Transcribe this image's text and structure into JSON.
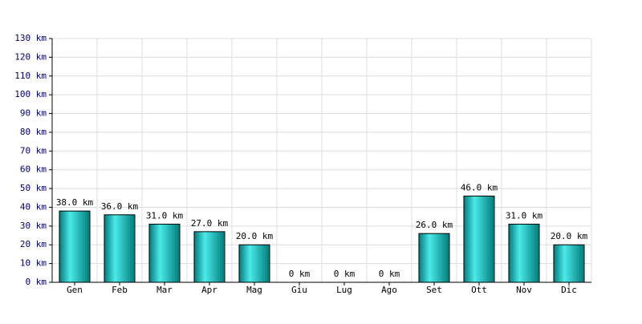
{
  "chart_data": {
    "type": "bar",
    "categories": [
      "Gen",
      "Feb",
      "Mar",
      "Apr",
      "Mag",
      "Giu",
      "Lug",
      "Ago",
      "Set",
      "Ott",
      "Nov",
      "Dic"
    ],
    "values": [
      38,
      36,
      31,
      27,
      20,
      0,
      0,
      0,
      26,
      46,
      31,
      20
    ],
    "value_labels": [
      "38.0 km",
      "36.0 km",
      "31.0 km",
      "27.0 km",
      "20.0 km",
      "0 km",
      "0 km",
      "0 km",
      "26.0 km",
      "46.0 km",
      "31.0 km",
      "20.0 km"
    ],
    "color": "#00e0e0",
    "ylim": [
      0,
      130
    ],
    "yticks": [
      {
        "value": 0,
        "label": "0 km"
      },
      {
        "value": 10,
        "label": "10 km"
      },
      {
        "value": 20,
        "label": "20 km"
      },
      {
        "value": 30,
        "label": "30 km"
      },
      {
        "value": 40,
        "label": "40 km"
      },
      {
        "value": 50,
        "label": "50 km"
      },
      {
        "value": 60,
        "label": "60 km"
      },
      {
        "value": 70,
        "label": "70 km"
      },
      {
        "value": 80,
        "label": "80 km"
      },
      {
        "value": 90,
        "label": "90 km"
      },
      {
        "value": 100,
        "label": "100 km"
      },
      {
        "value": 110,
        "label": "110 km"
      },
      {
        "value": 120,
        "label": "120 km"
      },
      {
        "value": 130,
        "label": "130 km"
      }
    ],
    "grid": true
  }
}
